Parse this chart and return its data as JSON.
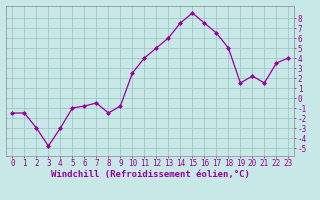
{
  "x": [
    0,
    1,
    2,
    3,
    4,
    5,
    6,
    7,
    8,
    9,
    10,
    11,
    12,
    13,
    14,
    15,
    16,
    17,
    18,
    19,
    20,
    21,
    22,
    23
  ],
  "y": [
    -1.5,
    -1.5,
    -3.0,
    -4.8,
    -3.0,
    -1.0,
    -0.8,
    -0.5,
    -1.5,
    -0.8,
    2.5,
    4.0,
    5.0,
    6.0,
    7.5,
    8.5,
    7.5,
    6.5,
    5.0,
    1.5,
    2.2,
    1.5,
    3.5,
    4.0
  ],
  "line_color": "#990099",
  "marker": "D",
  "marker_size": 2,
  "bg_color": "#c8e8e8",
  "grid_color": "#a0c8c8",
  "xlabel": "Windchill (Refroidissement éolien,°C)",
  "xlabel_fontsize": 6.5,
  "ylabel_ticks": [
    -5,
    -4,
    -3,
    -2,
    -1,
    0,
    1,
    2,
    3,
    4,
    5,
    6,
    7,
    8
  ],
  "xlim": [
    -0.5,
    23.5
  ],
  "ylim": [
    -5.8,
    9.2
  ],
  "tick_fontsize": 5.5,
  "spine_color": "#888888",
  "linewidth": 0.9
}
